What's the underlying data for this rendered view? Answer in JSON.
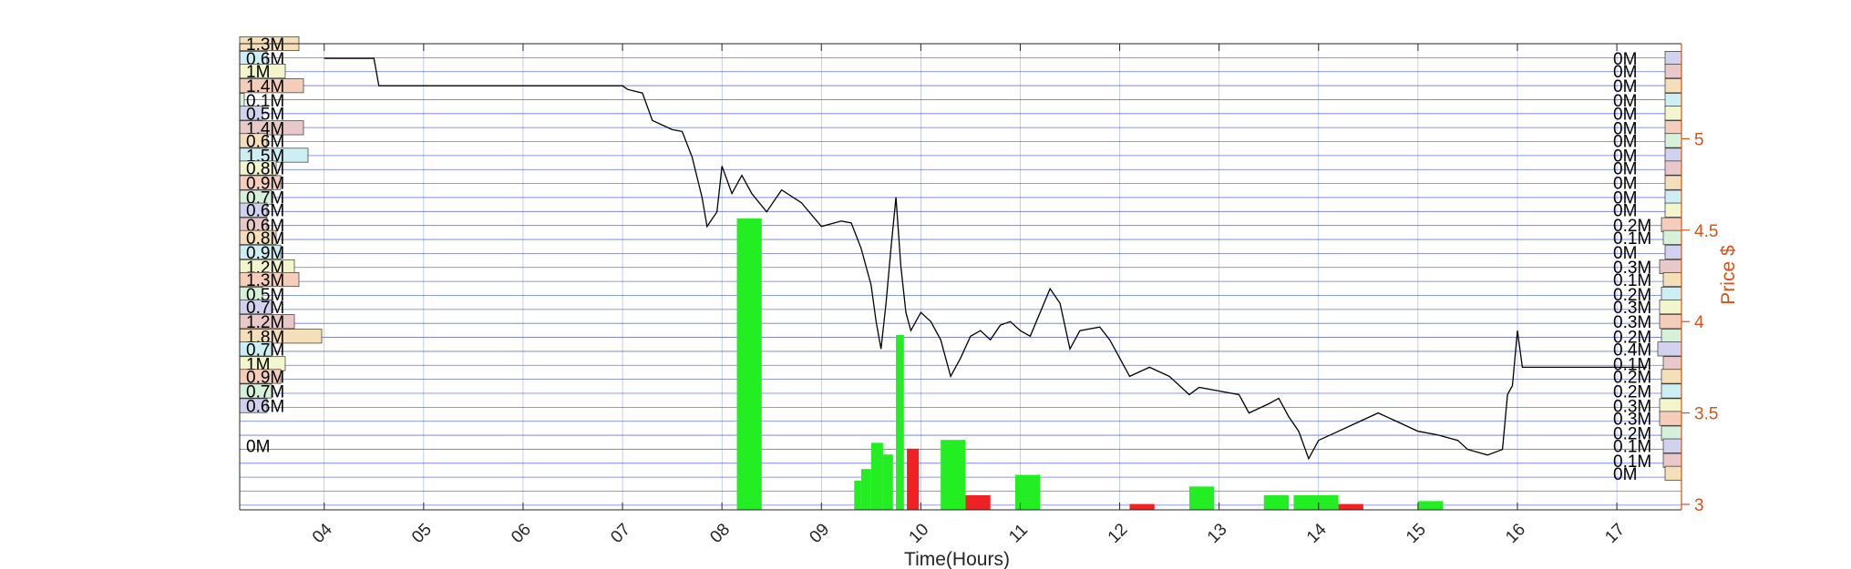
{
  "chart_data": {
    "type": "line",
    "title": "",
    "xlabel": "Time(Hours)",
    "ylabel": "Price $",
    "xlim": [
      3.15,
      17.65
    ],
    "ylim": [
      2.97,
      5.52
    ],
    "x_ticks": [
      4,
      5,
      6,
      7,
      8,
      9,
      10,
      11,
      12,
      13,
      14,
      15,
      16,
      17
    ],
    "x_tick_labels": [
      "04",
      "05",
      "06",
      "07",
      "08",
      "09",
      "10",
      "11",
      "12",
      "13",
      "14",
      "15",
      "16",
      "17"
    ],
    "y_ticks": [
      3,
      3.5,
      4,
      4.5,
      5
    ],
    "y_tick_labels": [
      "3",
      "3.5",
      "4",
      "4.5",
      "5"
    ],
    "grid": true,
    "price_series": [
      [
        4.0,
        5.44
      ],
      [
        4.5,
        5.44
      ],
      [
        4.55,
        5.29
      ],
      [
        6.0,
        5.29
      ],
      [
        7.0,
        5.29
      ],
      [
        7.05,
        5.27
      ],
      [
        7.2,
        5.25
      ],
      [
        7.3,
        5.1
      ],
      [
        7.5,
        5.05
      ],
      [
        7.6,
        5.04
      ],
      [
        7.7,
        4.9
      ],
      [
        7.8,
        4.68
      ],
      [
        7.85,
        4.52
      ],
      [
        7.95,
        4.6
      ],
      [
        8.0,
        4.85
      ],
      [
        8.1,
        4.7
      ],
      [
        8.2,
        4.8
      ],
      [
        8.3,
        4.7
      ],
      [
        8.45,
        4.6
      ],
      [
        8.6,
        4.72
      ],
      [
        8.8,
        4.65
      ],
      [
        9.0,
        4.52
      ],
      [
        9.2,
        4.55
      ],
      [
        9.3,
        4.54
      ],
      [
        9.4,
        4.4
      ],
      [
        9.5,
        4.2
      ],
      [
        9.55,
        4.0
      ],
      [
        9.6,
        3.85
      ],
      [
        9.65,
        4.1
      ],
      [
        9.7,
        4.4
      ],
      [
        9.75,
        4.68
      ],
      [
        9.8,
        4.3
      ],
      [
        9.85,
        4.05
      ],
      [
        9.9,
        3.95
      ],
      [
        10.0,
        4.05
      ],
      [
        10.1,
        4.0
      ],
      [
        10.2,
        3.9
      ],
      [
        10.3,
        3.7
      ],
      [
        10.4,
        3.8
      ],
      [
        10.5,
        3.92
      ],
      [
        10.6,
        3.95
      ],
      [
        10.7,
        3.9
      ],
      [
        10.8,
        3.98
      ],
      [
        10.9,
        4.0
      ],
      [
        11.0,
        3.95
      ],
      [
        11.1,
        3.92
      ],
      [
        11.2,
        4.05
      ],
      [
        11.3,
        4.18
      ],
      [
        11.4,
        4.1
      ],
      [
        11.5,
        3.85
      ],
      [
        11.6,
        3.95
      ],
      [
        11.8,
        3.97
      ],
      [
        11.9,
        3.9
      ],
      [
        12.1,
        3.7
      ],
      [
        12.3,
        3.75
      ],
      [
        12.5,
        3.7
      ],
      [
        12.7,
        3.6
      ],
      [
        12.8,
        3.64
      ],
      [
        13.0,
        3.62
      ],
      [
        13.2,
        3.6
      ],
      [
        13.3,
        3.5
      ],
      [
        13.5,
        3.55
      ],
      [
        13.6,
        3.58
      ],
      [
        13.7,
        3.48
      ],
      [
        13.8,
        3.4
      ],
      [
        13.9,
        3.25
      ],
      [
        14.0,
        3.35
      ],
      [
        14.2,
        3.4
      ],
      [
        14.4,
        3.45
      ],
      [
        14.6,
        3.5
      ],
      [
        14.8,
        3.45
      ],
      [
        15.0,
        3.4
      ],
      [
        15.2,
        3.38
      ],
      [
        15.4,
        3.35
      ],
      [
        15.5,
        3.3
      ],
      [
        15.7,
        3.27
      ],
      [
        15.85,
        3.3
      ],
      [
        15.9,
        3.6
      ],
      [
        15.95,
        3.65
      ],
      [
        16.0,
        3.95
      ],
      [
        16.05,
        3.75
      ],
      [
        16.4,
        3.75
      ],
      [
        16.9,
        3.75
      ],
      [
        17.3,
        3.75
      ]
    ],
    "volume_green": [
      {
        "x": 8.15,
        "w": 0.25,
        "v": 100
      },
      {
        "x": 9.33,
        "w": 0.07,
        "v": 10
      },
      {
        "x": 9.4,
        "w": 0.1,
        "v": 14
      },
      {
        "x": 9.5,
        "w": 0.12,
        "v": 23
      },
      {
        "x": 9.62,
        "w": 0.1,
        "v": 19
      },
      {
        "x": 9.75,
        "w": 0.08,
        "v": 60
      },
      {
        "x": 10.2,
        "w": 0.25,
        "v": 24
      },
      {
        "x": 10.95,
        "w": 0.25,
        "v": 12
      },
      {
        "x": 12.7,
        "w": 0.25,
        "v": 8
      },
      {
        "x": 13.45,
        "w": 0.25,
        "v": 5
      },
      {
        "x": 13.75,
        "w": 0.25,
        "v": 5
      },
      {
        "x": 13.95,
        "w": 0.25,
        "v": 5
      },
      {
        "x": 15.0,
        "w": 0.25,
        "v": 3
      }
    ],
    "volume_red": [
      {
        "x": 9.86,
        "w": 0.12,
        "v": 21
      },
      {
        "x": 10.45,
        "w": 0.25,
        "v": 5
      },
      {
        "x": 12.1,
        "w": 0.25,
        "v": 2
      },
      {
        "x": 14.2,
        "w": 0.25,
        "v": 2
      }
    ],
    "volume_ymax": 100,
    "volume_by_price_left": [
      {
        "price": 5.52,
        "label": "1.3M",
        "v": 1.3
      },
      {
        "price": 5.44,
        "label": "0.6M",
        "v": 0.6
      },
      {
        "price": 5.37,
        "label": "1M",
        "v": 1.0
      },
      {
        "price": 5.29,
        "label": "1.4M",
        "v": 1.4
      },
      {
        "price": 5.21,
        "label": "0.1M",
        "v": 0.1
      },
      {
        "price": 5.14,
        "label": "0.5M",
        "v": 0.5
      },
      {
        "price": 5.06,
        "label": "1.4M",
        "v": 1.4
      },
      {
        "price": 4.99,
        "label": "0.6M",
        "v": 0.6
      },
      {
        "price": 4.91,
        "label": "1.5M",
        "v": 1.5
      },
      {
        "price": 4.84,
        "label": "0.8M",
        "v": 0.8
      },
      {
        "price": 4.76,
        "label": "0.9M",
        "v": 0.9
      },
      {
        "price": 4.68,
        "label": "0.7M",
        "v": 0.7
      },
      {
        "price": 4.61,
        "label": "0.6M",
        "v": 0.6
      },
      {
        "price": 4.53,
        "label": "0.6M",
        "v": 0.6
      },
      {
        "price": 4.46,
        "label": "0.8M",
        "v": 0.8
      },
      {
        "price": 4.38,
        "label": "0.9M",
        "v": 0.9
      },
      {
        "price": 4.3,
        "label": "1.2M",
        "v": 1.2
      },
      {
        "price": 4.23,
        "label": "1.3M",
        "v": 1.3
      },
      {
        "price": 4.15,
        "label": "0.5M",
        "v": 0.5
      },
      {
        "price": 4.08,
        "label": "0.7M",
        "v": 0.7
      },
      {
        "price": 4.0,
        "label": "1.2M",
        "v": 1.2
      },
      {
        "price": 3.92,
        "label": "1.8M",
        "v": 1.8
      },
      {
        "price": 3.85,
        "label": "0.7M",
        "v": 0.7
      },
      {
        "price": 3.77,
        "label": "1M",
        "v": 1.0
      },
      {
        "price": 3.7,
        "label": "0.9M",
        "v": 0.9
      },
      {
        "price": 3.62,
        "label": "0.7M",
        "v": 0.7
      },
      {
        "price": 3.54,
        "label": "0.6M",
        "v": 0.6
      },
      {
        "price": 3.32,
        "label": "0M",
        "v": 0.0
      }
    ],
    "volume_by_price_right": [
      {
        "price": 5.44,
        "label": "0M",
        "v": 0.0
      },
      {
        "price": 5.37,
        "label": "0M",
        "v": 0.0
      },
      {
        "price": 5.29,
        "label": "0M",
        "v": 0.0
      },
      {
        "price": 5.21,
        "label": "0M",
        "v": 0.0
      },
      {
        "price": 5.14,
        "label": "0M",
        "v": 0.0
      },
      {
        "price": 5.06,
        "label": "0M",
        "v": 0.0
      },
      {
        "price": 4.99,
        "label": "0M",
        "v": 0.0
      },
      {
        "price": 4.91,
        "label": "0M",
        "v": 0.0
      },
      {
        "price": 4.84,
        "label": "0M",
        "v": 0.0
      },
      {
        "price": 4.76,
        "label": "0M",
        "v": 0.0
      },
      {
        "price": 4.68,
        "label": "0M",
        "v": 0.0
      },
      {
        "price": 4.61,
        "label": "0M",
        "v": 0.0
      },
      {
        "price": 4.53,
        "label": "0.2M",
        "v": 0.2
      },
      {
        "price": 4.46,
        "label": "0.1M",
        "v": 0.1
      },
      {
        "price": 4.38,
        "label": "0M",
        "v": 0.0
      },
      {
        "price": 4.3,
        "label": "0.3M",
        "v": 0.3
      },
      {
        "price": 4.23,
        "label": "0.1M",
        "v": 0.1
      },
      {
        "price": 4.15,
        "label": "0.2M",
        "v": 0.2
      },
      {
        "price": 4.08,
        "label": "0.3M",
        "v": 0.3
      },
      {
        "price": 4.0,
        "label": "0.3M",
        "v": 0.3
      },
      {
        "price": 3.92,
        "label": "0.2M",
        "v": 0.2
      },
      {
        "price": 3.85,
        "label": "0.4M",
        "v": 0.4
      },
      {
        "price": 3.77,
        "label": "0.1M",
        "v": 0.1
      },
      {
        "price": 3.7,
        "label": "0.2M",
        "v": 0.2
      },
      {
        "price": 3.62,
        "label": "0.2M",
        "v": 0.2
      },
      {
        "price": 3.54,
        "label": "0.3M",
        "v": 0.3
      },
      {
        "price": 3.47,
        "label": "0.3M",
        "v": 0.3
      },
      {
        "price": 3.39,
        "label": "0.2M",
        "v": 0.2
      },
      {
        "price": 3.32,
        "label": "0.1M",
        "v": 0.1
      },
      {
        "price": 3.24,
        "label": "0.1M",
        "v": 0.1
      },
      {
        "price": 3.17,
        "label": "0M",
        "v": 0.0
      }
    ],
    "vbp_max": 1.8
  },
  "colors": {
    "price_line": "#000000",
    "volume_up": "#22ee22",
    "volume_down": "#ee2222",
    "grid": "#4455dd",
    "price_axis": "#d95319",
    "vbp_palette": [
      "#f5dfb8",
      "#cdeff3",
      "#f3f5cd",
      "#f5cdbb",
      "#d7f0da",
      "#d2d2ee",
      "#e8c8c8"
    ]
  }
}
